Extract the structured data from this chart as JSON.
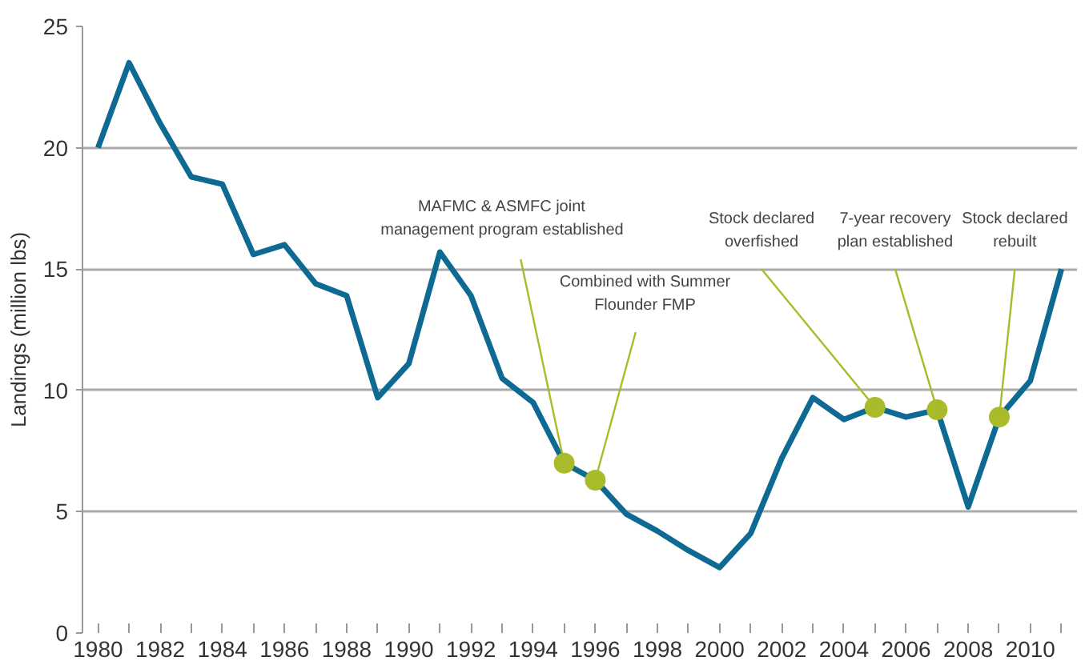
{
  "chart_data": {
    "type": "line",
    "ylabel": "Landings (million lbs)",
    "x": [
      1980,
      1981,
      1982,
      1983,
      1984,
      1985,
      1986,
      1987,
      1988,
      1989,
      1990,
      1991,
      1992,
      1993,
      1994,
      1995,
      1996,
      1997,
      1998,
      1999,
      2000,
      2001,
      2002,
      2003,
      2004,
      2005,
      2006,
      2007,
      2008,
      2009,
      2010,
      2011
    ],
    "series": [
      {
        "color": "#0e6a93",
        "values": [
          20,
          23.5,
          21,
          18.8,
          18.5,
          15.6,
          16.0,
          14.4,
          13.9,
          9.7,
          11.1,
          15.7,
          13.9,
          10.5,
          9.5,
          7.0,
          6.3,
          4.9,
          4.2,
          3.4,
          2.7,
          4.1,
          7.2,
          9.7,
          8.8,
          9.3,
          8.9,
          9.2,
          5.2,
          8.9,
          10.4,
          15.0
        ]
      }
    ],
    "xlim": [
      1979.5,
      2011.5
    ],
    "ylim": [
      0,
      25
    ],
    "yticks": [
      0,
      5,
      10,
      15,
      20,
      25
    ],
    "xticks": [
      1980,
      {
        "value": 1981,
        "label": null
      },
      1982,
      {
        "value": 1983,
        "label": null
      },
      1984,
      {
        "value": 1985,
        "label": null
      },
      1986,
      {
        "value": 1987,
        "label": null
      },
      1988,
      {
        "value": 1989,
        "label": null
      },
      1990,
      {
        "value": 1991,
        "label": null
      },
      1992,
      {
        "value": 1993,
        "label": null
      },
      1994,
      {
        "value": 1995,
        "label": null
      },
      1996,
      {
        "value": 1997,
        "label": null
      },
      1998,
      {
        "value": 1999,
        "label": null
      },
      2000,
      {
        "value": 2001,
        "label": null
      },
      2002,
      {
        "value": 2003,
        "label": null
      },
      2004,
      {
        "value": 2005,
        "label": null
      },
      2006,
      {
        "value": 2007,
        "label": null
      },
      2008,
      {
        "value": 2009,
        "label": null
      },
      2010,
      {
        "value": 2011,
        "label": null
      }
    ],
    "grid": "y",
    "marker": "none",
    "line_style": "solid",
    "annotations": [
      {
        "text": "MAFMC & ASMFC joint\nmanagement program established",
        "x": 1995,
        "y": 7.0
      },
      {
        "text": "Combined with Summer\nFlounder FMP",
        "x": 1996,
        "y": 6.3
      },
      {
        "text": "Stock declared\noverfished",
        "x": 2005,
        "y": 9.3
      },
      {
        "text": "7-year recovery\nplan established",
        "x": 2007,
        "y": 9.2
      },
      {
        "text": "Stock declared\nrebuilt",
        "x": 2009,
        "y": 8.9
      }
    ]
  }
}
